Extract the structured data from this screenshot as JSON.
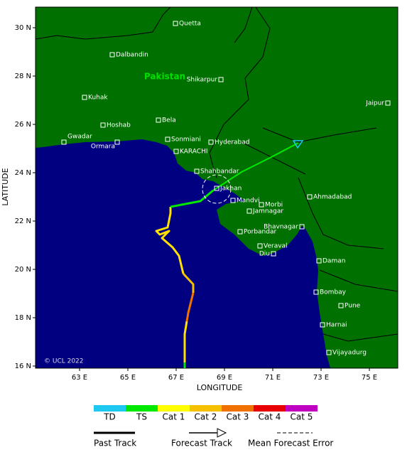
{
  "map": {
    "country_label": "Pakistan",
    "copyright": "© UCL 2022",
    "x_axis_title": "LONGITUDE",
    "y_axis_title": "LATITUDE",
    "xticks": [
      {
        "value": 63,
        "label": "63 E"
      },
      {
        "value": 65,
        "label": "65 E"
      },
      {
        "value": 67,
        "label": "67 E"
      },
      {
        "value": 69,
        "label": "69 E"
      },
      {
        "value": 71,
        "label": "71 E"
      },
      {
        "value": 73,
        "label": "73 E"
      },
      {
        "value": 75,
        "label": "75 E"
      }
    ],
    "yticks": [
      {
        "value": 30,
        "label": "30 N"
      },
      {
        "value": 28,
        "label": "28 N"
      },
      {
        "value": 26,
        "label": "26 N"
      },
      {
        "value": 24,
        "label": "24 N"
      },
      {
        "value": 22,
        "label": "22 N"
      },
      {
        "value": 20,
        "label": "20 N"
      },
      {
        "value": 18,
        "label": "18 N"
      },
      {
        "value": 16,
        "label": "16 N"
      }
    ],
    "cities": [
      "Quetta",
      "Dalbandin",
      "Shikarpur",
      "Kuhak",
      "Jaipur",
      "Hoshab",
      "Bela",
      "Gwadar",
      "Ormara",
      "Sonmiani",
      "Hyderabad",
      "KARACHI",
      "Shahbandar",
      "Ahmadabad",
      "Jakhan",
      "Mandvi",
      "Morbi",
      "Jamnagar",
      "Bhavnagar",
      "Porbandar",
      "Veraval",
      "Diu",
      "Daman",
      "Bombay",
      "Pune",
      "Harnai",
      "Vijayadurg"
    ]
  },
  "legend": {
    "intensity": [
      {
        "name": "TD",
        "color": "#1ec8f0"
      },
      {
        "name": "TS",
        "color": "#00e800"
      },
      {
        "name": "Cat 1",
        "color": "#ffff00"
      },
      {
        "name": "Cat 2",
        "color": "#f5c000"
      },
      {
        "name": "Cat 3",
        "color": "#f07000"
      },
      {
        "name": "Cat 4",
        "color": "#e80000"
      },
      {
        "name": "Cat 5",
        "color": "#c000c0"
      }
    ],
    "tracks": [
      "Past Track",
      "Forecast Track",
      "Mean Forecast Error"
    ]
  }
}
